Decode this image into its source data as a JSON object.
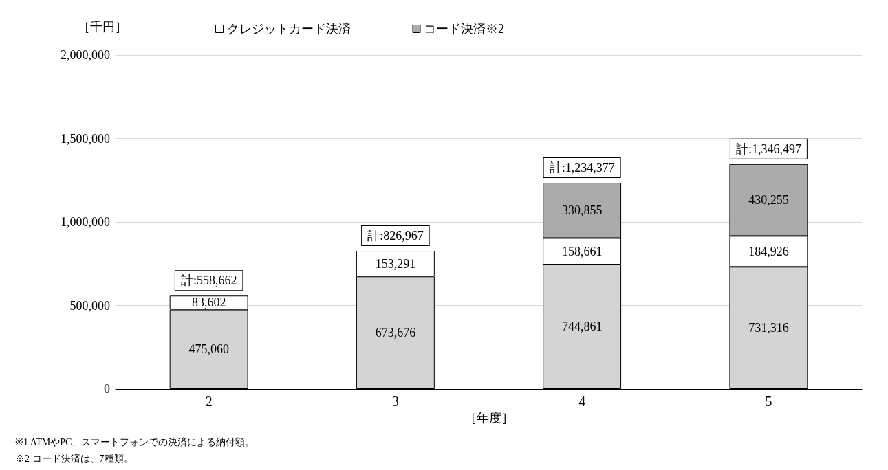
{
  "chart_data": {
    "type": "bar",
    "stacked": true,
    "ylabel": "［千円］",
    "xlabel": "［年度］",
    "categories": [
      "2",
      "3",
      "4",
      "5"
    ],
    "series": [
      {
        "color": "#d4d4d4",
        "values": [
          475060,
          673676,
          744861,
          731316
        ],
        "value_labels": [
          "475,060",
          "673,676",
          "744,861",
          "731,316"
        ]
      },
      {
        "name": "クレジットカード決済",
        "color": "#ffffff",
        "values": [
          83602,
          153291,
          158661,
          184926
        ],
        "value_labels": [
          "83,602",
          "153,291",
          "158,661",
          "184,926"
        ]
      },
      {
        "name": "コード決済※2",
        "color": "#ababab",
        "values": [
          null,
          null,
          330855,
          430255
        ],
        "value_labels": [
          null,
          null,
          "330,855",
          "430,255"
        ]
      }
    ],
    "totals": [
      "計:558,662",
      "計:826,967",
      "計:1,234,377",
      "計:1,346,497"
    ],
    "ylim": [
      0,
      2000000
    ],
    "yticks": [
      {
        "value": 0,
        "label": "0"
      },
      {
        "value": 500000,
        "label": "500,000"
      },
      {
        "value": 1000000,
        "label": "1,000,000"
      },
      {
        "value": 1500000,
        "label": "1,500,000"
      },
      {
        "value": 2000000,
        "label": "2,000,000"
      }
    ],
    "grid": "y",
    "legend": "top",
    "annotations": [
      "※1 ATMやPC、スマートフォンでの決済による納付額。",
      "※2 コード決済は、7種類。"
    ]
  }
}
